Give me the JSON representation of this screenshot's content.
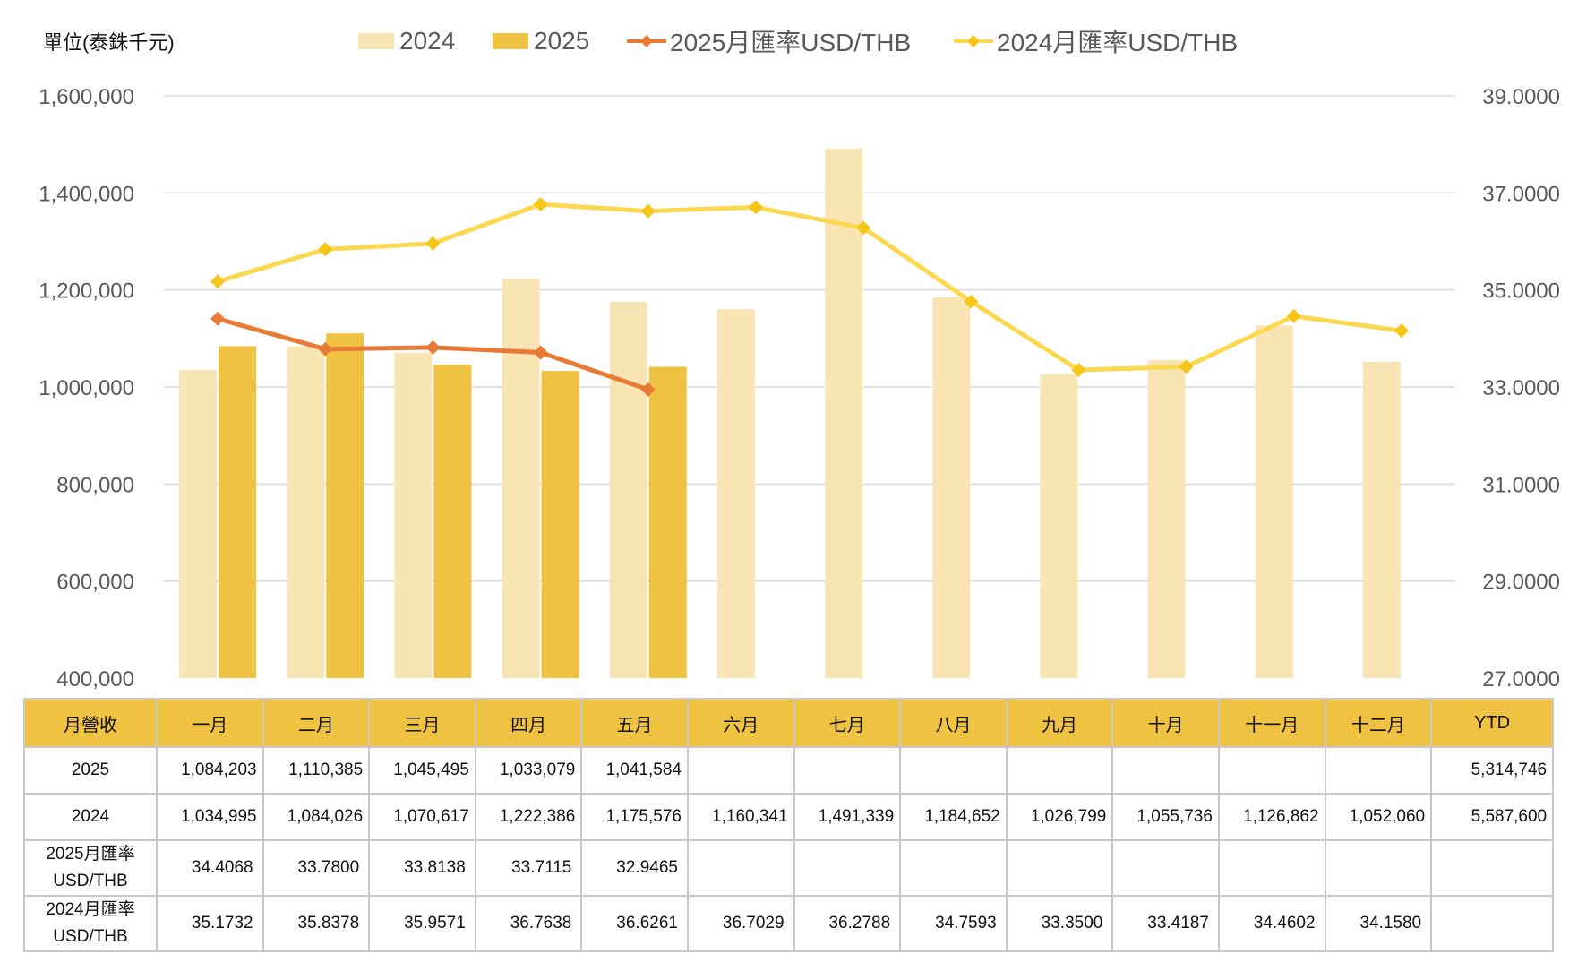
{
  "colors": {
    "bar_2024": "#f9e5b4",
    "bar_2025": "#efc242",
    "line_2025": "#e87a35",
    "line_2024": "#fcd750",
    "grid": "#d9d9d9",
    "header_bg": "#f0c242"
  },
  "unit_label": "單位(泰銖千元)",
  "legend": {
    "bar_2024": "2024",
    "bar_2025": "2025",
    "line_2025": "2025月匯率USD/THB",
    "line_2024": "2024月匯率USD/THB"
  },
  "chart_data": {
    "type": "bar",
    "categories": [
      "一月",
      "二月",
      "三月",
      "四月",
      "五月",
      "六月",
      "七月",
      "八月",
      "九月",
      "十月",
      "十一月",
      "十二月"
    ],
    "left_axis": {
      "ylim": [
        400000,
        1600000
      ],
      "ticks": [
        "1,600,000",
        "1,400,000",
        "1,200,000",
        "1,000,000",
        "800,000",
        "600,000",
        "400,000"
      ],
      "tick_values": [
        1600000,
        1400000,
        1200000,
        1000000,
        800000,
        600000,
        400000
      ]
    },
    "right_axis": {
      "ylim": [
        27.0,
        39.0
      ],
      "ticks": [
        "39.0000",
        "37.0000",
        "35.0000",
        "33.0000",
        "31.0000",
        "29.0000",
        "27.0000"
      ],
      "tick_values": [
        39,
        37,
        35,
        33,
        31,
        29,
        27
      ]
    },
    "grid": true,
    "legend_position": "top",
    "series": [
      {
        "name": "2024",
        "kind": "bar",
        "axis": "left",
        "values": [
          1034995,
          1084026,
          1070617,
          1222386,
          1175576,
          1160341,
          1491339,
          1184652,
          1026799,
          1055736,
          1126862,
          1052060
        ]
      },
      {
        "name": "2025",
        "kind": "bar",
        "axis": "left",
        "values": [
          1084203,
          1110385,
          1045495,
          1033079,
          1041584,
          null,
          null,
          null,
          null,
          null,
          null,
          null
        ]
      },
      {
        "name": "2025月匯率USD/THB",
        "kind": "line",
        "axis": "right",
        "values": [
          34.4068,
          33.78,
          33.8138,
          33.7115,
          32.9465,
          null,
          null,
          null,
          null,
          null,
          null,
          null
        ]
      },
      {
        "name": "2024月匯率USD/THB",
        "kind": "line",
        "axis": "right",
        "values": [
          35.1732,
          35.8378,
          35.9571,
          36.7638,
          36.6261,
          36.7029,
          36.2788,
          34.7593,
          33.35,
          33.4187,
          34.4602,
          34.158
        ]
      }
    ]
  },
  "table": {
    "header": [
      "月營收",
      "一月",
      "二月",
      "三月",
      "四月",
      "五月",
      "六月",
      "七月",
      "八月",
      "九月",
      "十月",
      "十一月",
      "十二月",
      "YTD"
    ],
    "rows": [
      {
        "label": [
          "2025"
        ],
        "kind": "num",
        "cells": [
          "1,084,203",
          "1,110,385",
          "1,045,495",
          "1,033,079",
          "1,041,584",
          "",
          "",
          "",
          "",
          "",
          "",
          "",
          "5,314,746"
        ]
      },
      {
        "label": [
          "2024"
        ],
        "kind": "num",
        "cells": [
          "1,034,995",
          "1,084,026",
          "1,070,617",
          "1,222,386",
          "1,175,576",
          "1,160,341",
          "1,491,339",
          "1,184,652",
          "1,026,799",
          "1,055,736",
          "1,126,862",
          "1,052,060",
          "5,587,600"
        ]
      },
      {
        "label": [
          "2025月匯率",
          "USD/THB"
        ],
        "kind": "rate",
        "cells": [
          "34.4068",
          "33.7800",
          "33.8138",
          "33.7115",
          "32.9465",
          "",
          "",
          "",
          "",
          "",
          "",
          "",
          ""
        ]
      },
      {
        "label": [
          "2024月匯率",
          "USD/THB"
        ],
        "kind": "rate",
        "cells": [
          "35.1732",
          "35.8378",
          "35.9571",
          "36.7638",
          "36.6261",
          "36.7029",
          "36.2788",
          "34.7593",
          "33.3500",
          "33.4187",
          "34.4602",
          "34.1580",
          ""
        ]
      }
    ]
  }
}
